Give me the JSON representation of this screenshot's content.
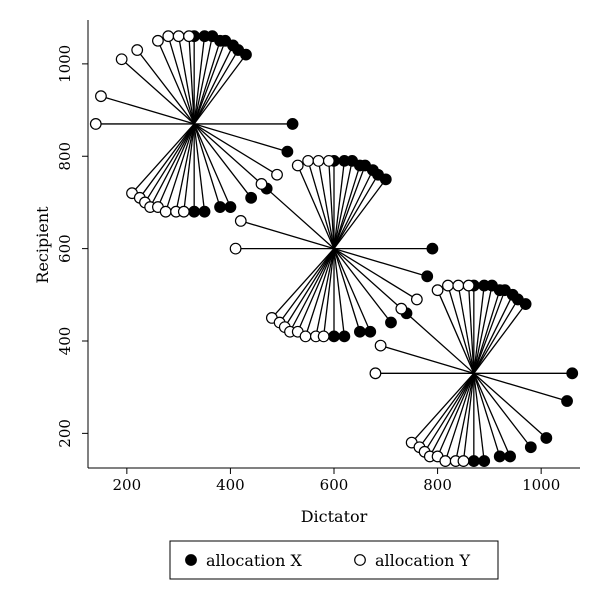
{
  "chart_data": {
    "type": "scatter",
    "title": "",
    "xlabel": "Dictator",
    "ylabel": "Recipient",
    "xlim": [
      125,
      1075
    ],
    "ylim": [
      125,
      1095
    ],
    "xticks": [
      200,
      400,
      600,
      800,
      1000
    ],
    "yticks": [
      200,
      400,
      600,
      800,
      1000
    ],
    "grid": false,
    "legend_position": "bottom",
    "legend": [
      {
        "name": "allocation X",
        "marker": "filled-circle"
      },
      {
        "name": "allocation Y",
        "marker": "hollow-circle"
      }
    ],
    "centers": [
      [
        330,
        870
      ],
      [
        600,
        600
      ],
      [
        870,
        330
      ]
    ],
    "series": [
      {
        "name": "allocation X",
        "points": [
          [
            330,
            1060
          ],
          [
            350,
            1060
          ],
          [
            365,
            1060
          ],
          [
            380,
            1050
          ],
          [
            390,
            1050
          ],
          [
            405,
            1040
          ],
          [
            415,
            1030
          ],
          [
            430,
            1020
          ],
          [
            520,
            870
          ],
          [
            510,
            810
          ],
          [
            470,
            730
          ],
          [
            440,
            710
          ],
          [
            400,
            690
          ],
          [
            380,
            690
          ],
          [
            350,
            680
          ],
          [
            330,
            680
          ],
          [
            600,
            790
          ],
          [
            620,
            790
          ],
          [
            635,
            790
          ],
          [
            650,
            780
          ],
          [
            660,
            780
          ],
          [
            675,
            770
          ],
          [
            685,
            760
          ],
          [
            700,
            750
          ],
          [
            790,
            600
          ],
          [
            780,
            540
          ],
          [
            740,
            460
          ],
          [
            710,
            440
          ],
          [
            670,
            420
          ],
          [
            650,
            420
          ],
          [
            620,
            410
          ],
          [
            600,
            410
          ],
          [
            870,
            520
          ],
          [
            890,
            520
          ],
          [
            905,
            520
          ],
          [
            920,
            510
          ],
          [
            930,
            510
          ],
          [
            945,
            500
          ],
          [
            955,
            490
          ],
          [
            970,
            480
          ],
          [
            1060,
            330
          ],
          [
            1050,
            270
          ],
          [
            1010,
            190
          ],
          [
            980,
            170
          ],
          [
            940,
            150
          ],
          [
            920,
            150
          ],
          [
            890,
            140
          ],
          [
            870,
            140
          ]
        ]
      },
      {
        "name": "allocation Y",
        "points": [
          [
            140,
            870
          ],
          [
            150,
            930
          ],
          [
            190,
            1010
          ],
          [
            220,
            1030
          ],
          [
            260,
            1050
          ],
          [
            280,
            1060
          ],
          [
            300,
            1060
          ],
          [
            320,
            1060
          ],
          [
            210,
            720
          ],
          [
            225,
            710
          ],
          [
            235,
            700
          ],
          [
            245,
            690
          ],
          [
            260,
            690
          ],
          [
            275,
            680
          ],
          [
            295,
            680
          ],
          [
            310,
            680
          ],
          [
            410,
            600
          ],
          [
            420,
            660
          ],
          [
            460,
            740
          ],
          [
            490,
            760
          ],
          [
            530,
            780
          ],
          [
            550,
            790
          ],
          [
            570,
            790
          ],
          [
            590,
            790
          ],
          [
            480,
            450
          ],
          [
            495,
            440
          ],
          [
            505,
            430
          ],
          [
            515,
            420
          ],
          [
            530,
            420
          ],
          [
            545,
            410
          ],
          [
            565,
            410
          ],
          [
            580,
            410
          ],
          [
            680,
            330
          ],
          [
            690,
            390
          ],
          [
            730,
            470
          ],
          [
            760,
            490
          ],
          [
            800,
            510
          ],
          [
            820,
            520
          ],
          [
            840,
            520
          ],
          [
            860,
            520
          ],
          [
            750,
            180
          ],
          [
            765,
            170
          ],
          [
            775,
            160
          ],
          [
            785,
            150
          ],
          [
            800,
            150
          ],
          [
            815,
            140
          ],
          [
            835,
            140
          ],
          [
            850,
            140
          ]
        ]
      }
    ]
  }
}
